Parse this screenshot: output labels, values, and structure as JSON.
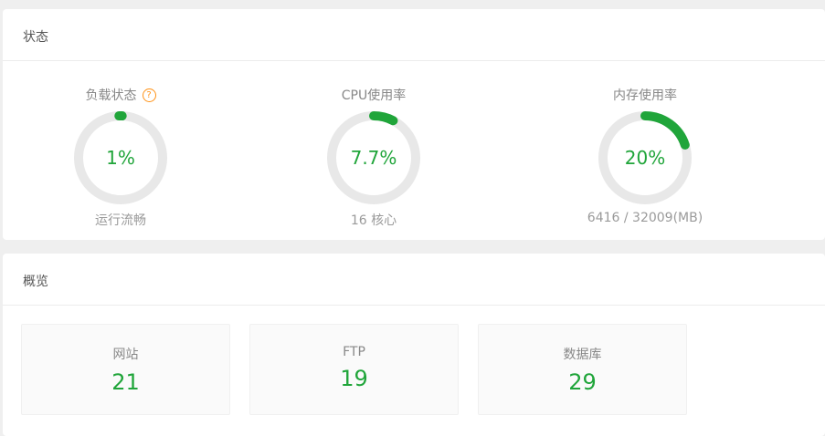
{
  "colors": {
    "green": "#20a53a",
    "orange": "#ff9216",
    "ring_track": "#e8e8e8"
  },
  "status_section": {
    "title": "状态",
    "help_icon_glyph": "?",
    "gauges": [
      {
        "label": "负载状态",
        "value_text": "1%",
        "percent": 1,
        "caption": "运行流畅"
      },
      {
        "label": "CPU使用率",
        "value_text": "7.7%",
        "percent": 7.7,
        "caption": "16 核心"
      },
      {
        "label": "内存使用率",
        "value_text": "20%",
        "percent": 20,
        "caption": "6416 / 32009(MB)"
      }
    ]
  },
  "overview_section": {
    "title": "概览",
    "cards": [
      {
        "label": "网站",
        "count": "21"
      },
      {
        "label": "FTP",
        "count": "19"
      },
      {
        "label": "数据库",
        "count": "29"
      }
    ]
  }
}
